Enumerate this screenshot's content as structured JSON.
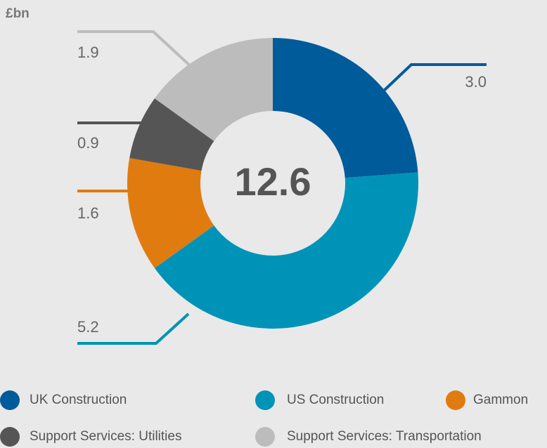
{
  "chart_data": {
    "type": "pie",
    "unit": "£bn",
    "total": 12.6,
    "categories": [
      "UK Construction",
      "US Construction",
      "Gammon",
      "Support Services: Utilities",
      "Support Services: Transportation"
    ],
    "values": [
      3.0,
      5.2,
      1.6,
      0.9,
      1.9
    ],
    "value_labels": [
      "3.0",
      "5.2",
      "1.6",
      "0.9",
      "1.9"
    ],
    "colors": [
      "#005b9b",
      "#0093b8",
      "#e07b10",
      "#555555",
      "#bcbcbc"
    ],
    "donut": true
  }
}
